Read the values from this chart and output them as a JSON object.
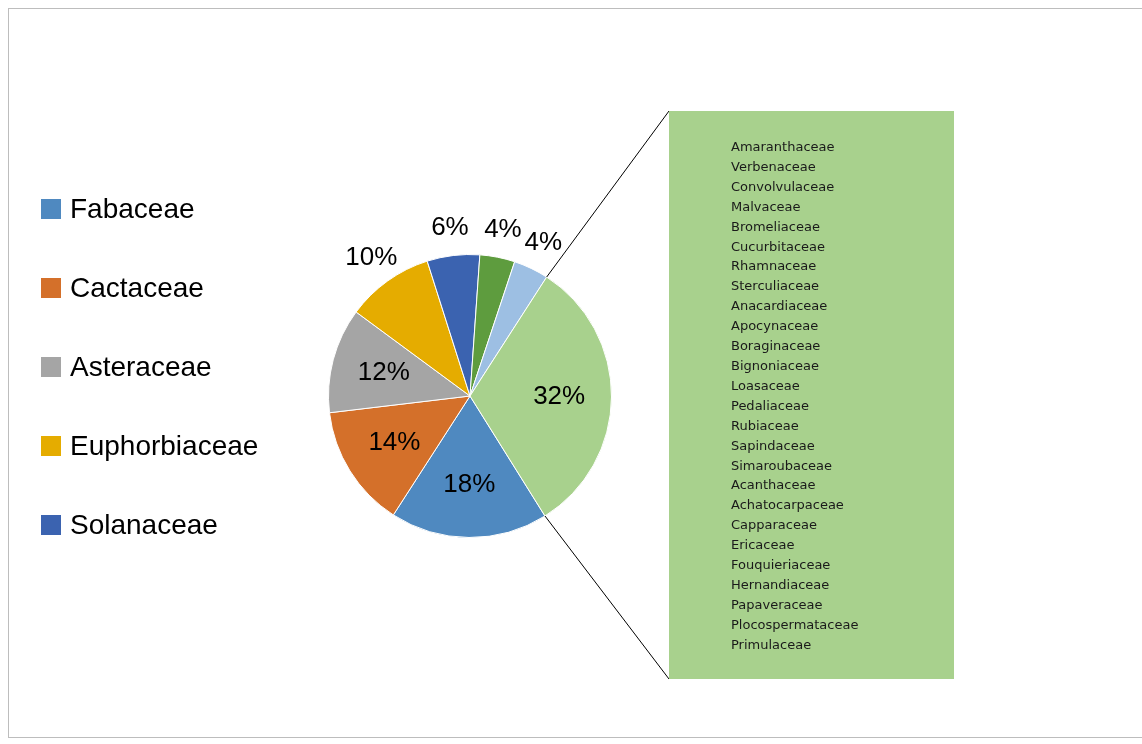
{
  "chart_data": {
    "type": "pie",
    "categories": [
      "Fabaceae",
      "Cactaceae",
      "Asteraceae",
      "Euphorbiaceae",
      "Solanaceae",
      null,
      null,
      null
    ],
    "values": [
      18,
      14,
      12,
      10,
      6,
      4,
      4,
      32
    ],
    "colors": [
      "#4f89c0",
      "#d4702a",
      "#a5a5a5",
      "#e5ac00",
      "#3b63b0",
      "#5e9c3e",
      "#9dbfe3",
      "#a8d18d"
    ],
    "value_labels": [
      "18%",
      "14%",
      "12%",
      "10%",
      "6%",
      "4%",
      "4%",
      "32%"
    ],
    "legend": "left",
    "annotations": [
      "Amaranthaceae",
      "Verbenaceae",
      "Convolvulaceae",
      "Malvaceae",
      "Bromeliaceae",
      "Cucurbitaceae",
      "Rhamnaceae",
      "Sterculiaceae",
      "Anacardiaceae",
      "Apocynaceae",
      "Boraginaceae",
      "Bignoniaceae",
      "Loasaceae",
      "Pedaliaceae",
      "Rubiaceae",
      "Sapindaceae",
      "Simaroubaceae",
      "Acanthaceae",
      "Achatocarpaceae",
      "Capparaceae",
      "Ericaceae",
      "Fouquieriaceae",
      "Hernandiaceae",
      "Papaveraceae",
      "Plocospermataceae",
      "Primulaceae"
    ]
  }
}
